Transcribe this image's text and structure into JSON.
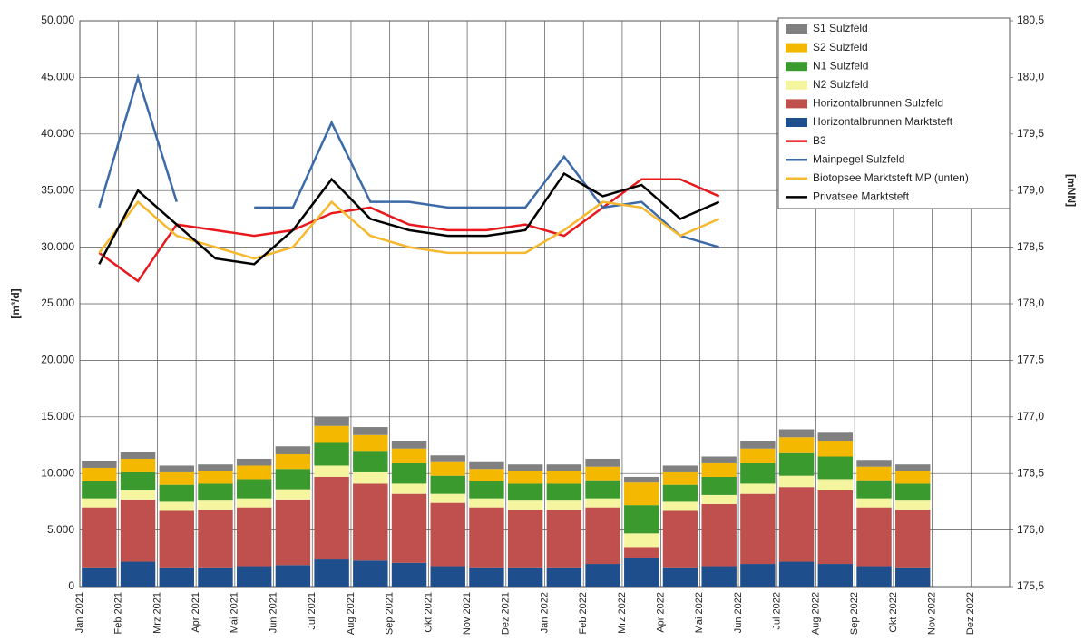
{
  "chart_data": {
    "type": "bar",
    "y_label": "[m³/d]",
    "y2_label": "[mNN]",
    "categories": [
      "Jan 2021",
      "Feb 2021",
      "Mrz 2021",
      "Apr 2021",
      "Mai 2021",
      "Jun 2021",
      "Jul 2021",
      "Aug 2021",
      "Sep 2021",
      "Okt 2021",
      "Nov 2021",
      "Dez 2021",
      "Jan 2022",
      "Feb 2022",
      "Mrz 2022",
      "Apr 2022",
      "Mai 2022",
      "Jun 2022",
      "Jul 2022",
      "Aug 2022",
      "Sep 2022",
      "Okt 2022",
      "Nov 2022",
      "Dez 2022"
    ],
    "ylim": [
      0,
      50000
    ],
    "yticks": [
      {
        "value": 0,
        "label": "0"
      },
      {
        "value": 5000,
        "label": "5.000"
      },
      {
        "value": 10000,
        "label": "10.000"
      },
      {
        "value": 15000,
        "label": "15.000"
      },
      {
        "value": 20000,
        "label": "20.000"
      },
      {
        "value": 25000,
        "label": "25.000"
      },
      {
        "value": 30000,
        "label": "30.000"
      },
      {
        "value": 35000,
        "label": "35.000"
      },
      {
        "value": 40000,
        "label": "40.000"
      },
      {
        "value": 45000,
        "label": "45.000"
      },
      {
        "value": 50000,
        "label": "50.000"
      }
    ],
    "y2lim": [
      175.5,
      180.5
    ],
    "y2ticks": [
      {
        "value": 175.5,
        "label": "175,5"
      },
      {
        "value": 176,
        "label": "176,0"
      },
      {
        "value": 176.5,
        "label": "176,5"
      },
      {
        "value": 177,
        "label": "177,0"
      },
      {
        "value": 177.5,
        "label": "177,5"
      },
      {
        "value": 178,
        "label": "178,0"
      },
      {
        "value": 178.5,
        "label": "178,5"
      },
      {
        "value": 179,
        "label": "179,0"
      },
      {
        "value": 179.5,
        "label": "179,5"
      },
      {
        "value": 180,
        "label": "180,0"
      },
      {
        "value": 180.5,
        "label": "180,5"
      }
    ],
    "grid": true,
    "legend": "top-right",
    "series": [
      {
        "name": "S1 Sulzfeld",
        "type": "bar",
        "color": "#808080",
        "values": [
          600,
          600,
          600,
          600,
          600,
          700,
          800,
          700,
          700,
          600,
          600,
          600,
          600,
          700,
          500,
          600,
          600,
          700,
          700,
          700,
          600,
          600,
          null,
          null
        ]
      },
      {
        "name": "S2 Sulzfeld",
        "type": "bar",
        "color": "#f5b800",
        "values": [
          1200,
          1200,
          1100,
          1100,
          1200,
          1300,
          1500,
          1400,
          1300,
          1200,
          1100,
          1100,
          1100,
          1200,
          2000,
          1100,
          1200,
          1300,
          1400,
          1400,
          1200,
          1100,
          null,
          null
        ]
      },
      {
        "name": "N1 Sulzfeld",
        "type": "bar",
        "color": "#3a9a2e",
        "values": [
          1500,
          1600,
          1500,
          1500,
          1700,
          1800,
          2000,
          1900,
          1800,
          1600,
          1500,
          1500,
          1500,
          1600,
          2500,
          1500,
          1600,
          1800,
          2000,
          2000,
          1600,
          1500,
          null,
          null
        ]
      },
      {
        "name": "N2 Sulzfeld",
        "type": "bar",
        "color": "#f5f5a0",
        "values": [
          800,
          800,
          800,
          800,
          800,
          900,
          1000,
          1000,
          900,
          800,
          800,
          800,
          800,
          800,
          1200,
          800,
          800,
          900,
          1000,
          1000,
          800,
          800,
          null,
          null
        ]
      },
      {
        "name": "Horizontalbrunnen Sulzfeld",
        "type": "bar",
        "color": "#c0504d",
        "values": [
          5300,
          5500,
          5000,
          5100,
          5200,
          5800,
          7300,
          6800,
          6100,
          5600,
          5300,
          5100,
          5100,
          5000,
          1000,
          5000,
          5500,
          6200,
          6600,
          6500,
          5200,
          5100,
          null,
          null
        ]
      },
      {
        "name": "Horizontalbrunnen Marktsteft",
        "type": "bar",
        "color": "#1f4e8c",
        "values": [
          1700,
          2200,
          1700,
          1700,
          1800,
          1900,
          2400,
          2300,
          2100,
          1800,
          1700,
          1700,
          1700,
          2000,
          2500,
          1700,
          1800,
          2000,
          2200,
          2000,
          1800,
          1700,
          null,
          null
        ]
      },
      {
        "name": "B3",
        "type": "line",
        "axis": "y2",
        "color": "#e8191e",
        "values": [
          178.45,
          178.2,
          178.7,
          178.65,
          178.6,
          178.65,
          178.8,
          178.85,
          178.7,
          178.65,
          178.65,
          178.7,
          178.6,
          178.85,
          179.1,
          179.1,
          178.95,
          null,
          null,
          null,
          null,
          null,
          null,
          null
        ]
      },
      {
        "name": "Mainpegel Sulzfeld",
        "type": "line",
        "axis": "y2",
        "color": "#3c6aa8",
        "values": [
          178.85,
          180.0,
          178.9,
          null,
          178.85,
          178.85,
          179.6,
          178.9,
          178.9,
          178.85,
          178.85,
          178.85,
          179.3,
          178.85,
          178.9,
          178.6,
          178.5,
          null,
          null,
          null,
          null,
          null,
          null,
          null
        ]
      },
      {
        "name": "Biotopsee Marktsteft MP (unten)",
        "type": "line",
        "axis": "y2",
        "color": "#f5b82e",
        "values": [
          178.45,
          178.9,
          178.6,
          178.5,
          178.4,
          178.5,
          178.9,
          178.6,
          178.5,
          178.45,
          178.45,
          178.45,
          178.65,
          178.9,
          178.85,
          178.6,
          178.75,
          null,
          null,
          null,
          null,
          null,
          null,
          null
        ]
      },
      {
        "name": "Privatsee Marktsteft",
        "type": "line",
        "axis": "y2",
        "color": "#000000",
        "values": [
          178.35,
          179.0,
          178.7,
          178.4,
          178.35,
          178.65,
          179.1,
          178.75,
          178.65,
          178.6,
          178.6,
          178.65,
          179.15,
          178.95,
          179.05,
          178.75,
          178.9,
          null,
          null,
          null,
          null,
          null,
          null,
          null
        ]
      }
    ]
  }
}
